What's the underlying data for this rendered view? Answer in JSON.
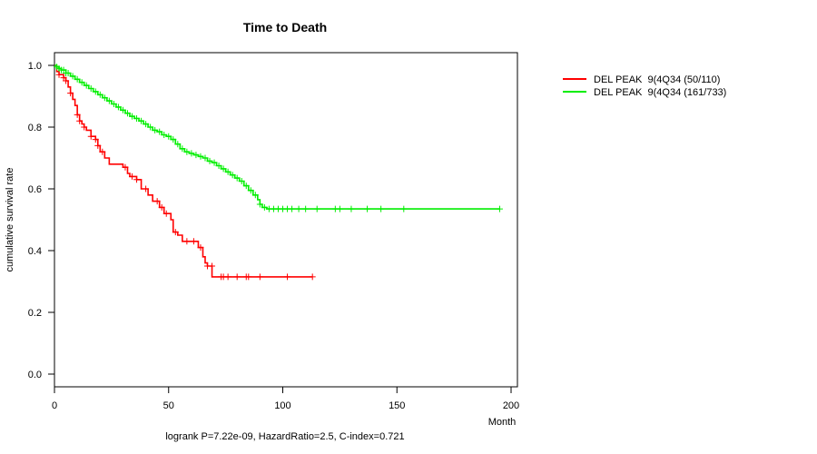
{
  "chart_data": {
    "type": "line",
    "subtype": "kaplan-meier",
    "title": "Time to Death",
    "xlabel": "Month",
    "ylabel": "cumulative survival rate",
    "xlim": [
      0,
      200
    ],
    "ylim": [
      0,
      1
    ],
    "xticks": [
      "0",
      "50",
      "100",
      "150",
      "200"
    ],
    "yticks": [
      "0.0",
      "0.2",
      "0.4",
      "0.6",
      "0.8",
      "1.0"
    ],
    "xtick_values": [
      0,
      50,
      100,
      150,
      200
    ],
    "ytick_values": [
      0.0,
      0.2,
      0.4,
      0.6,
      0.8,
      1.0
    ],
    "footer": "logrank P=7.22e-09, HazardRatio=2.5, C-index=0.721",
    "legend_position": "top-right, outside plot",
    "series": [
      {
        "name": "DEL PEAK  9(4Q34 (50/110)",
        "color": "#ff0000",
        "steps": [
          [
            0,
            1.0
          ],
          [
            1,
            0.98
          ],
          [
            2,
            0.97
          ],
          [
            4,
            0.96
          ],
          [
            5,
            0.95
          ],
          [
            6,
            0.93
          ],
          [
            7,
            0.91
          ],
          [
            8,
            0.89
          ],
          [
            9,
            0.87
          ],
          [
            10,
            0.84
          ],
          [
            11,
            0.82
          ],
          [
            12,
            0.81
          ],
          [
            13,
            0.8
          ],
          [
            14,
            0.79
          ],
          [
            16,
            0.77
          ],
          [
            18,
            0.76
          ],
          [
            19,
            0.74
          ],
          [
            20,
            0.72
          ],
          [
            22,
            0.7
          ],
          [
            24,
            0.68
          ],
          [
            30,
            0.67
          ],
          [
            32,
            0.65
          ],
          [
            33,
            0.64
          ],
          [
            36,
            0.63
          ],
          [
            38,
            0.6
          ],
          [
            41,
            0.58
          ],
          [
            43,
            0.56
          ],
          [
            46,
            0.54
          ],
          [
            48,
            0.52
          ],
          [
            51,
            0.5
          ],
          [
            52,
            0.46
          ],
          [
            54,
            0.45
          ],
          [
            56,
            0.43
          ],
          [
            63,
            0.41
          ],
          [
            65,
            0.38
          ],
          [
            66,
            0.36
          ],
          [
            67,
            0.35
          ],
          [
            69,
            0.315
          ],
          [
            113,
            0.315
          ]
        ],
        "censors": [
          [
            2,
            0.97
          ],
          [
            4,
            0.96
          ],
          [
            5,
            0.95
          ],
          [
            7,
            0.91
          ],
          [
            10,
            0.84
          ],
          [
            11,
            0.82
          ],
          [
            13,
            0.8
          ],
          [
            16,
            0.77
          ],
          [
            18,
            0.76
          ],
          [
            19,
            0.74
          ],
          [
            21,
            0.72
          ],
          [
            31,
            0.67
          ],
          [
            34,
            0.64
          ],
          [
            36,
            0.63
          ],
          [
            40,
            0.6
          ],
          [
            45,
            0.56
          ],
          [
            47,
            0.54
          ],
          [
            49,
            0.52
          ],
          [
            53,
            0.46
          ],
          [
            58,
            0.43
          ],
          [
            61,
            0.43
          ],
          [
            64,
            0.41
          ],
          [
            67,
            0.35
          ],
          [
            69,
            0.35
          ],
          [
            73,
            0.315
          ],
          [
            74,
            0.315
          ],
          [
            76,
            0.315
          ],
          [
            80,
            0.315
          ],
          [
            84,
            0.315
          ],
          [
            85,
            0.315
          ],
          [
            90,
            0.315
          ],
          [
            102,
            0.315
          ],
          [
            113,
            0.315
          ]
        ]
      },
      {
        "name": "DEL PEAK  9(4Q34 (161/733)",
        "color": "#00ee00",
        "steps": [
          [
            0,
            1.0
          ],
          [
            1,
            0.995
          ],
          [
            2,
            0.99
          ],
          [
            3,
            0.985
          ],
          [
            5,
            0.975
          ],
          [
            7,
            0.965
          ],
          [
            9,
            0.955
          ],
          [
            11,
            0.945
          ],
          [
            13,
            0.935
          ],
          [
            15,
            0.925
          ],
          [
            17,
            0.915
          ],
          [
            19,
            0.905
          ],
          [
            21,
            0.895
          ],
          [
            23,
            0.885
          ],
          [
            25,
            0.875
          ],
          [
            27,
            0.865
          ],
          [
            29,
            0.855
          ],
          [
            31,
            0.845
          ],
          [
            33,
            0.835
          ],
          [
            35,
            0.828
          ],
          [
            37,
            0.82
          ],
          [
            39,
            0.81
          ],
          [
            41,
            0.8
          ],
          [
            43,
            0.79
          ],
          [
            45,
            0.785
          ],
          [
            47,
            0.775
          ],
          [
            49,
            0.77
          ],
          [
            51,
            0.76
          ],
          [
            53,
            0.745
          ],
          [
            55,
            0.73
          ],
          [
            57,
            0.72
          ],
          [
            59,
            0.715
          ],
          [
            61,
            0.71
          ],
          [
            63,
            0.705
          ],
          [
            65,
            0.7
          ],
          [
            67,
            0.69
          ],
          [
            69,
            0.685
          ],
          [
            71,
            0.675
          ],
          [
            73,
            0.665
          ],
          [
            75,
            0.655
          ],
          [
            77,
            0.645
          ],
          [
            79,
            0.635
          ],
          [
            81,
            0.625
          ],
          [
            83,
            0.61
          ],
          [
            85,
            0.595
          ],
          [
            87,
            0.58
          ],
          [
            89,
            0.565
          ],
          [
            90,
            0.55
          ],
          [
            91,
            0.54
          ],
          [
            93,
            0.535
          ],
          [
            195,
            0.535
          ]
        ],
        "censors": [
          [
            1,
            0.995
          ],
          [
            2,
            0.99
          ],
          [
            3,
            0.985
          ],
          [
            4,
            0.985
          ],
          [
            5,
            0.975
          ],
          [
            6,
            0.975
          ],
          [
            8,
            0.965
          ],
          [
            10,
            0.955
          ],
          [
            12,
            0.945
          ],
          [
            14,
            0.935
          ],
          [
            16,
            0.925
          ],
          [
            18,
            0.915
          ],
          [
            20,
            0.905
          ],
          [
            22,
            0.895
          ],
          [
            24,
            0.885
          ],
          [
            26,
            0.875
          ],
          [
            28,
            0.865
          ],
          [
            30,
            0.855
          ],
          [
            32,
            0.845
          ],
          [
            34,
            0.835
          ],
          [
            36,
            0.828
          ],
          [
            38,
            0.82
          ],
          [
            40,
            0.81
          ],
          [
            42,
            0.8
          ],
          [
            44,
            0.79
          ],
          [
            46,
            0.785
          ],
          [
            48,
            0.775
          ],
          [
            50,
            0.77
          ],
          [
            52,
            0.76
          ],
          [
            54,
            0.745
          ],
          [
            56,
            0.73
          ],
          [
            58,
            0.72
          ],
          [
            60,
            0.715
          ],
          [
            62,
            0.71
          ],
          [
            64,
            0.705
          ],
          [
            66,
            0.7
          ],
          [
            68,
            0.69
          ],
          [
            70,
            0.685
          ],
          [
            72,
            0.675
          ],
          [
            74,
            0.665
          ],
          [
            76,
            0.655
          ],
          [
            78,
            0.645
          ],
          [
            80,
            0.635
          ],
          [
            82,
            0.625
          ],
          [
            84,
            0.61
          ],
          [
            86,
            0.595
          ],
          [
            88,
            0.58
          ],
          [
            90,
            0.55
          ],
          [
            92,
            0.54
          ],
          [
            94,
            0.535
          ],
          [
            96,
            0.535
          ],
          [
            98,
            0.535
          ],
          [
            100,
            0.535
          ],
          [
            102,
            0.535
          ],
          [
            104,
            0.535
          ],
          [
            107,
            0.535
          ],
          [
            110,
            0.535
          ],
          [
            115,
            0.535
          ],
          [
            123,
            0.535
          ],
          [
            125,
            0.535
          ],
          [
            130,
            0.535
          ],
          [
            137,
            0.535
          ],
          [
            143,
            0.535
          ],
          [
            153,
            0.535
          ],
          [
            195,
            0.535
          ]
        ]
      }
    ]
  }
}
